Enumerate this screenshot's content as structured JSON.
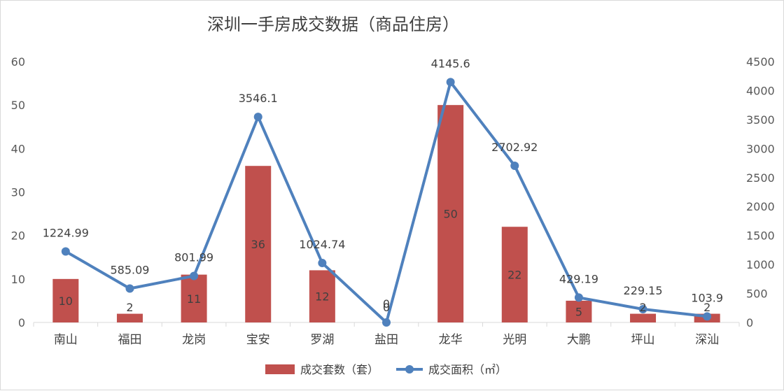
{
  "chart_data": {
    "type": "bar+line",
    "title": "深圳一手房成交数据（商品住房）",
    "categories": [
      "南山",
      "福田",
      "龙岗",
      "宝安",
      "罗湖",
      "盐田",
      "龙华",
      "光明",
      "大鹏",
      "坪山",
      "深汕"
    ],
    "series": [
      {
        "name": "成交套数（套）",
        "type": "bar",
        "axis": "left",
        "color": "#c0504d",
        "values": [
          10,
          2,
          11,
          36,
          12,
          0,
          50,
          22,
          5,
          2,
          2
        ],
        "labels": [
          "10",
          "2",
          "11",
          "36",
          "12",
          "0",
          "50",
          "22",
          "5",
          "2",
          "2"
        ]
      },
      {
        "name": "成交面积（㎡）",
        "type": "line",
        "axis": "right",
        "color": "#4f81bd",
        "values": [
          1224.99,
          585.09,
          801.99,
          3546.1,
          1024.74,
          0,
          4145.6,
          2702.92,
          429.19,
          229.15,
          103.9
        ],
        "labels": [
          "1224.99",
          "585.09",
          "801.99",
          "3546.1",
          "1024.74",
          "0",
          "4145.6",
          "2702.92",
          "429.19",
          "229.15",
          "103.9"
        ]
      }
    ],
    "y_left": {
      "min": 0,
      "max": 60,
      "step": 10,
      "ticks": [
        "0",
        "10",
        "20",
        "30",
        "40",
        "50",
        "60"
      ]
    },
    "y_right": {
      "min": 0,
      "max": 4500,
      "step": 500,
      "ticks": [
        "0",
        "500",
        "1000",
        "1500",
        "2000",
        "2500",
        "3000",
        "3500",
        "4000",
        "4500"
      ]
    },
    "grid": false,
    "legend": "bottom-center"
  }
}
